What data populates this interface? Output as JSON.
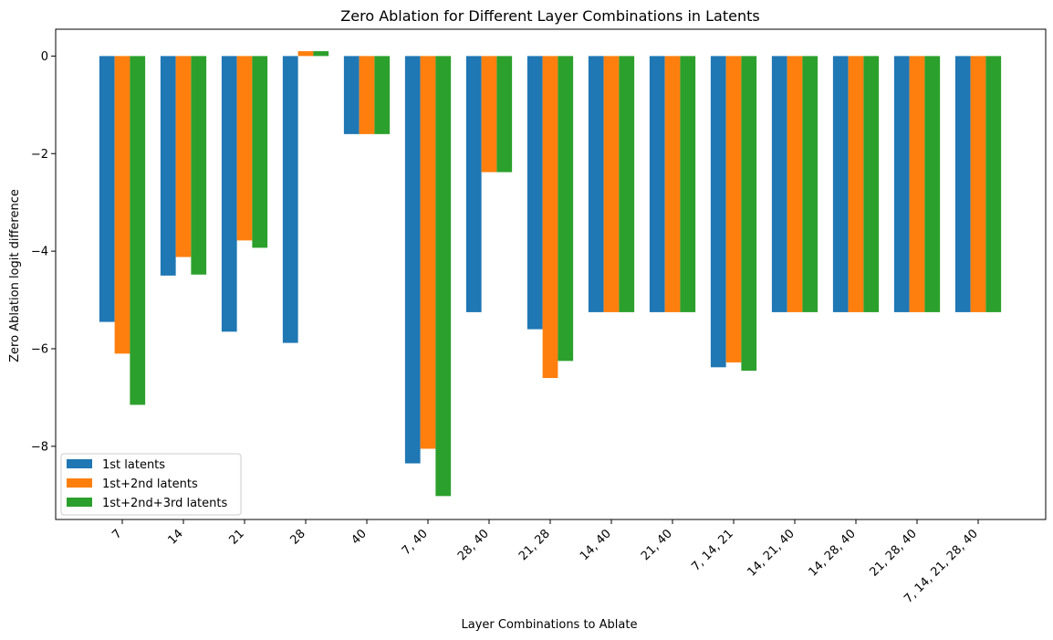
{
  "chart_data": {
    "type": "bar",
    "title": "Zero Ablation for Different Layer Combinations in Latents",
    "xlabel": "Layer Combinations to Ablate",
    "ylabel": "Zero Ablation logit difference",
    "categories": [
      "7",
      "14",
      "21",
      "28",
      "40",
      "7, 40",
      "28, 40",
      "21, 28",
      "14, 40",
      "21, 40",
      "7, 14, 21",
      "14, 21, 40",
      "14, 28, 40",
      "21, 28, 40",
      "7, 14, 21, 28, 40"
    ],
    "series": [
      {
        "name": "1st latents",
        "color": "#1f77b4",
        "values": [
          -5.45,
          -4.5,
          -5.65,
          -5.88,
          -1.6,
          -8.35,
          -5.25,
          -5.6,
          -5.25,
          -5.25,
          -6.38,
          -5.25,
          -5.25,
          -5.25,
          -5.25
        ]
      },
      {
        "name": "1st+2nd latents",
        "color": "#ff7f0e",
        "values": [
          -6.1,
          -4.12,
          -3.78,
          0.1,
          -1.6,
          -8.05,
          -2.38,
          -6.6,
          -5.25,
          -5.25,
          -6.28,
          -5.25,
          -5.25,
          -5.25,
          -5.25
        ]
      },
      {
        "name": "1st+2nd+3rd latents",
        "color": "#2ca02c",
        "values": [
          -7.15,
          -4.48,
          -3.93,
          0.1,
          -1.6,
          -9.02,
          -2.38,
          -6.25,
          -5.25,
          -5.25,
          -6.45,
          -5.25,
          -5.25,
          -5.25,
          -5.25
        ]
      }
    ],
    "yticks": [
      0,
      -2,
      -4,
      -6,
      -8
    ],
    "ylim": [
      -9.5,
      0.55
    ],
    "grid": false,
    "legend_position": "lower-left"
  }
}
